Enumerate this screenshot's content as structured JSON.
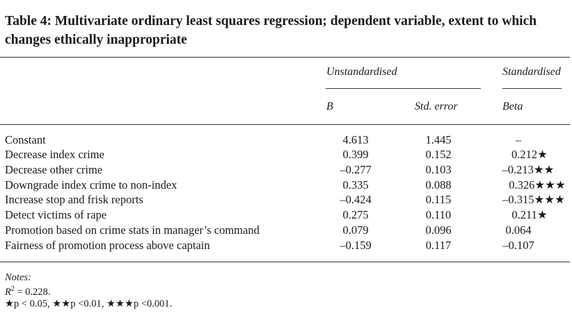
{
  "table": {
    "title": "Table 4: Multivariate ordinary least squares regression; dependent variable, extent to which changes ethically inappropriate",
    "group_headers": {
      "unstandardised": "Unstandardised",
      "standardised": "Standardised"
    },
    "column_headers": {
      "b": "B",
      "std_error": "Std. error",
      "beta": "Beta"
    },
    "rows": [
      {
        "label": "Constant",
        "b": "4.613",
        "se": "1.445",
        "beta": "–"
      },
      {
        "label": "Decrease index crime",
        "b": "0.399",
        "se": "0.152",
        "beta": "0.212★"
      },
      {
        "label": "Decrease other crime",
        "b": "–0.277",
        "se": "0.103",
        "beta": "–0.213★★"
      },
      {
        "label": "Downgrade index crime to non-index",
        "b": "0.335",
        "se": "0.088",
        "beta": "0.326★★★"
      },
      {
        "label": "Increase stop and frisk reports",
        "b": "–0.424",
        "se": "0.115",
        "beta": "–0.315★★★"
      },
      {
        "label": "Detect victims of rape",
        "b": "0.275",
        "se": "0.110",
        "beta": "0.211★"
      },
      {
        "label": "Promotion based on crime stats in manager’s command",
        "b": "0.079",
        "se": "0.096",
        "beta": "0.064"
      },
      {
        "label": "Fairness of promotion process above captain",
        "b": "–0.159",
        "se": "0.117",
        "beta": "–0.107"
      }
    ],
    "notes": {
      "heading": "Notes:",
      "r_squared_symbol": "R",
      "r_squared_exponent": "2",
      "r_squared_value": " = 0.228.",
      "significance": "★p < 0.05, ★★p <0.01, ★★★p <0.001."
    }
  }
}
